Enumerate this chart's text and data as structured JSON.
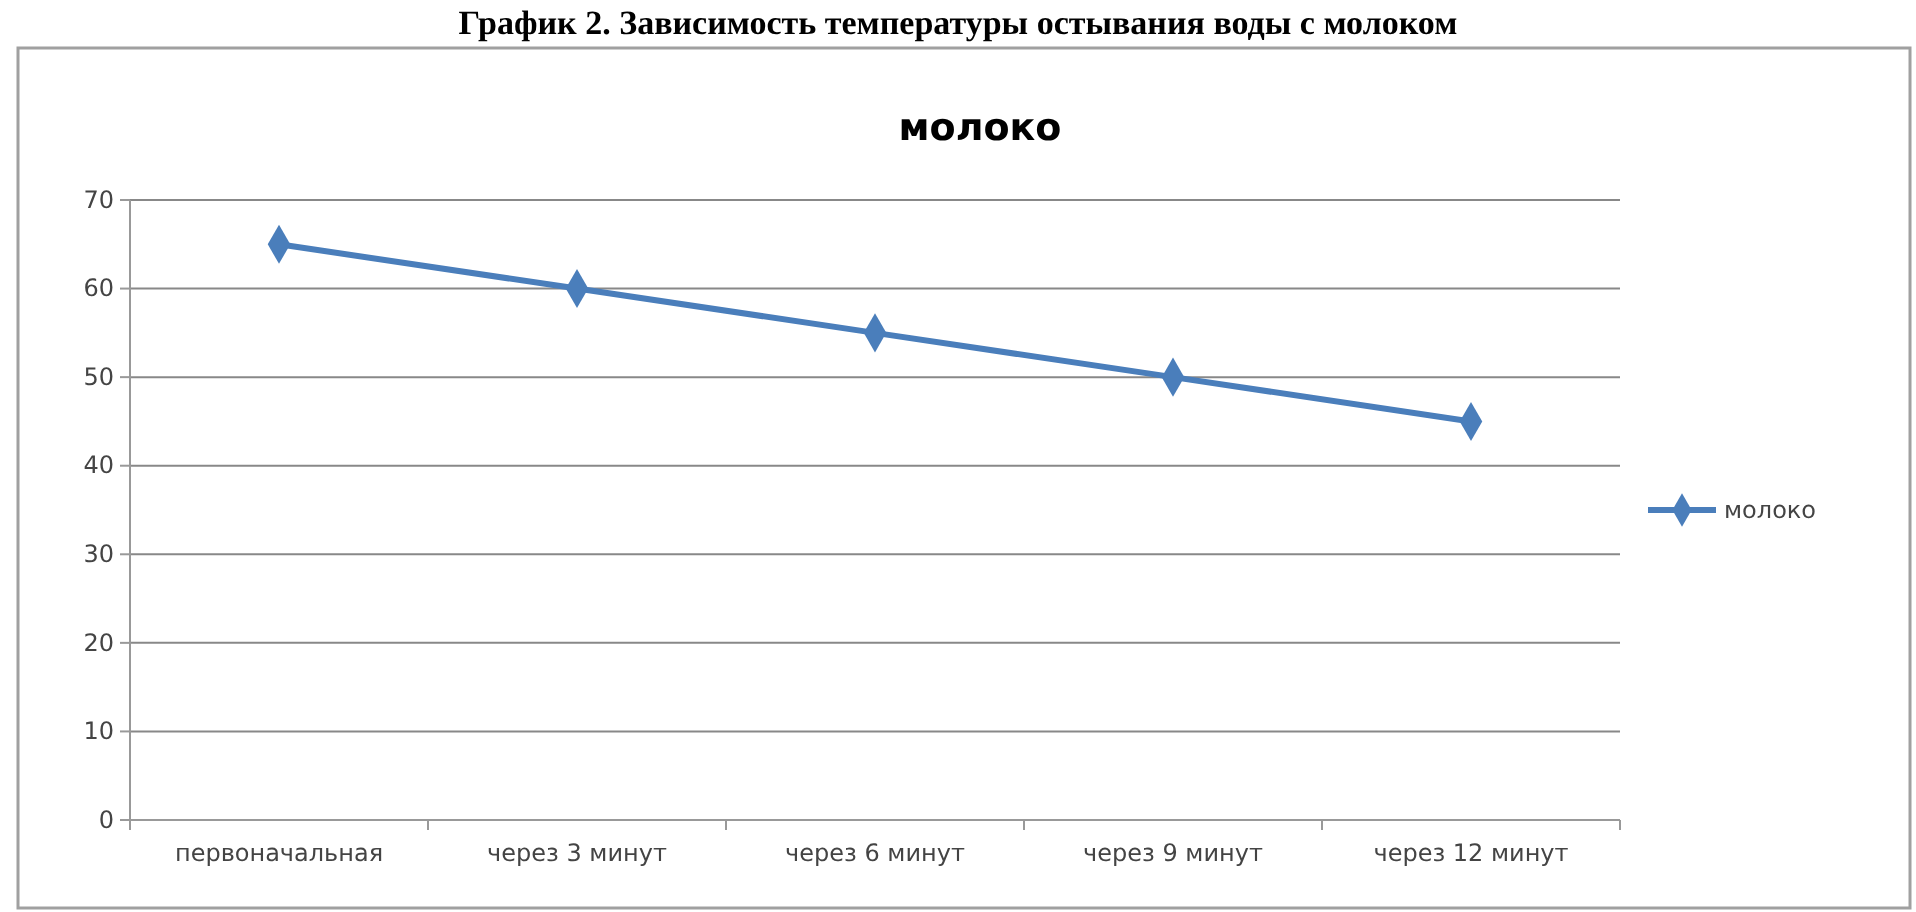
{
  "chart_data": {
    "type": "line",
    "title": "График 2. Зависимость температуры остывания воды с молоком",
    "subtitle": "молоко",
    "categories": [
      "первоначальная",
      "через 3 минут",
      "через 6 минут",
      "через 9 минут",
      "через 12 минут"
    ],
    "series": [
      {
        "name": "молоко",
        "color": "#4a7ebb",
        "values": [
          65,
          60,
          55,
          50,
          45
        ]
      }
    ],
    "ylim": [
      0,
      70
    ],
    "yticks": [
      0,
      10,
      20,
      30,
      40,
      50,
      60,
      70
    ],
    "grid": "y",
    "legend": "right",
    "marker": "diamond",
    "line_style": "solid"
  }
}
